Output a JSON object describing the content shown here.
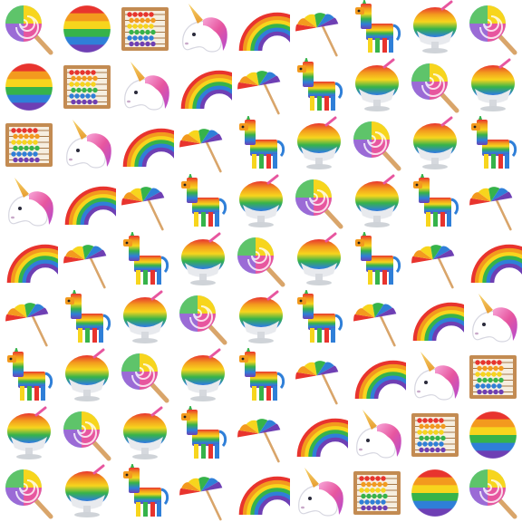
{
  "pattern": {
    "rows": [
      [
        "lollipop",
        "rainbow-ball",
        "abacus",
        "unicorn",
        "rainbow",
        "umbrella",
        "pinata",
        "shaved-ice",
        "lollipop"
      ],
      [
        "rainbow-ball",
        "abacus",
        "unicorn",
        "rainbow",
        "umbrella",
        "pinata",
        "shaved-ice",
        "lollipop",
        "shaved-ice"
      ],
      [
        "abacus",
        "unicorn",
        "rainbow",
        "umbrella",
        "pinata",
        "shaved-ice",
        "lollipop",
        "shaved-ice",
        "pinata"
      ],
      [
        "unicorn",
        "rainbow",
        "umbrella",
        "pinata",
        "shaved-ice",
        "lollipop",
        "shaved-ice",
        "pinata",
        "umbrella"
      ],
      [
        "rainbow",
        "umbrella",
        "pinata",
        "shaved-ice",
        "lollipop",
        "shaved-ice",
        "pinata",
        "umbrella",
        "rainbow"
      ],
      [
        "umbrella",
        "pinata",
        "shaved-ice",
        "lollipop",
        "shaved-ice",
        "pinata",
        "umbrella",
        "rainbow",
        "unicorn"
      ],
      [
        "pinata",
        "shaved-ice",
        "lollipop",
        "shaved-ice",
        "pinata",
        "umbrella",
        "rainbow",
        "unicorn",
        "abacus"
      ],
      [
        "shaved-ice",
        "lollipop",
        "shaved-ice",
        "pinata",
        "umbrella",
        "rainbow",
        "unicorn",
        "abacus",
        "rainbow-ball"
      ],
      [
        "lollipop",
        "shaved-ice",
        "pinata",
        "umbrella",
        "rainbow",
        "unicorn",
        "abacus",
        "rainbow-ball",
        "lollipop"
      ]
    ]
  },
  "colors": {
    "background": "#ffffff",
    "rainbow": [
      "#e8342e",
      "#f39a1e",
      "#f7d51d",
      "#36b34a",
      "#2f7fd8",
      "#6e3fb4"
    ]
  }
}
